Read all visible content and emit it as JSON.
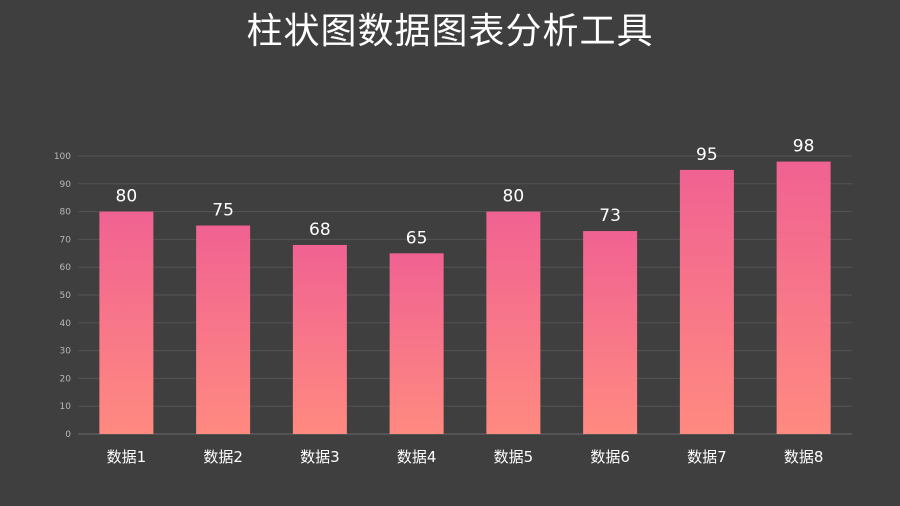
{
  "title": "柱状图数据图表分析工具",
  "colors": {
    "background": "#3f3f3f",
    "bar_top": "#f06292",
    "bar_bottom": "#ff8a80",
    "text": "#ffffff",
    "grid": "#545454"
  },
  "chart_data": {
    "type": "bar",
    "title": "柱状图数据图表分析工具",
    "categories": [
      "数据1",
      "数据2",
      "数据3",
      "数据4",
      "数据5",
      "数据6",
      "数据7",
      "数据8"
    ],
    "values": [
      80,
      75,
      68,
      65,
      80,
      73,
      95,
      98
    ],
    "y_ticks": [
      "0",
      "10",
      "20",
      "30",
      "40",
      "50",
      "60",
      "70",
      "80",
      "90",
      "100"
    ],
    "xlabel": "",
    "ylabel": "",
    "ylim": [
      0,
      100
    ],
    "grid": true,
    "legend": "none",
    "data_labels": true
  }
}
